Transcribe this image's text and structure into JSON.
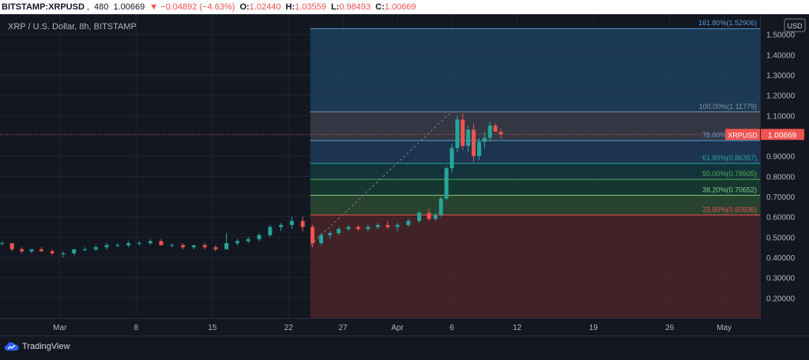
{
  "header": {
    "symbol": "BITSTAMP:XRPUSD",
    "interval": "480",
    "last": "1.00669",
    "arrow": "▼",
    "change": "−0.04892 (−4.63%)",
    "o_label": "O:",
    "o_value": "1.02440",
    "h_label": "H:",
    "h_value": "1.03559",
    "l_label": "L:",
    "l_value": "0.98493",
    "c_label": "C:",
    "c_value": "1.00669"
  },
  "footer": {
    "brand": "TradingView",
    "logo_icon": "tradingview-cloud-icon"
  },
  "colors": {
    "up": "#26a69a",
    "down": "#ef5350",
    "bg": "#131722",
    "grid": "#1f2430"
  },
  "chart_data": {
    "type": "candlestick",
    "title": "XRP / U.S. Dollar, 8h, BITSTAMP",
    "currency_label": "USD",
    "last_price_tag": {
      "symbol": "XRPUSD",
      "value": "1.00669"
    },
    "y_ticks": [
      "1.50000",
      "1.40000",
      "1.30000",
      "1.20000",
      "1.10000",
      "1.00000",
      "0.90000",
      "0.80000",
      "0.70000",
      "0.60000",
      "0.50000",
      "0.40000",
      "0.30000",
      "0.20000"
    ],
    "y_tick_values": [
      1.5,
      1.4,
      1.3,
      1.2,
      1.1,
      1.0,
      0.9,
      0.8,
      0.7,
      0.6,
      0.5,
      0.4,
      0.3,
      0.2
    ],
    "ylim": [
      0.1,
      1.6
    ],
    "x_ticks": [
      {
        "label": "Mar",
        "day": 1
      },
      {
        "label": "8",
        "day": 8
      },
      {
        "label": "15",
        "day": 15
      },
      {
        "label": "22",
        "day": 22
      },
      {
        "label": "27",
        "day": 27
      },
      {
        "label": "Apr",
        "day": 32
      },
      {
        "label": "6",
        "day": 37
      },
      {
        "label": "12",
        "day": 43
      },
      {
        "label": "19",
        "day": 50
      },
      {
        "label": "26",
        "day": 57
      },
      {
        "label": "May",
        "day": 62
      }
    ],
    "xlim": [
      -4.5,
      65.3
    ],
    "fib_start_day": 24,
    "fib_levels": [
      {
        "label": "161.80%(1.52906)",
        "value": 1.52906,
        "color": "#5b9bd5",
        "fill": "#1c3f5e"
      },
      {
        "label": "100.00%(1.11779)",
        "value": 1.11779,
        "color": "#8a8f9c",
        "fill": "#3a3d49"
      },
      {
        "label": "78.60%(0.97678)",
        "value": 0.97678,
        "color": "#5b9bd5",
        "fill": "#1e3a57"
      },
      {
        "label": "61.80%(0.86357)",
        "value": 0.86357,
        "color": "#26a69a",
        "fill": "#14383f"
      },
      {
        "label": "50.00%(0.78505)",
        "value": 0.78505,
        "color": "#4caf50",
        "fill": "#173d33"
      },
      {
        "label": "38.20%(0.70652)",
        "value": 0.70652,
        "color": "#81c784",
        "fill": "#2b4a30"
      },
      {
        "label": "23.60%(0.60936)",
        "value": 0.60936,
        "color": "#ef5350",
        "fill": "#3d2a31"
      }
    ],
    "fib_bottom_fill": "#4a2428",
    "trend_line": {
      "from": {
        "day": 24,
        "price": 0.46
      },
      "to": {
        "day": 36.8,
        "price": 1.11
      }
    },
    "candles": [
      [
        -4.3,
        0.47,
        0.48,
        0.46,
        0.47
      ],
      [
        -3.4,
        0.47,
        0.46,
        0.43,
        0.44
      ],
      [
        -2.5,
        0.44,
        0.45,
        0.42,
        0.43
      ],
      [
        -1.6,
        0.43,
        0.44,
        0.42,
        0.44
      ],
      [
        -0.7,
        0.44,
        0.45,
        0.43,
        0.43
      ],
      [
        0.3,
        0.43,
        0.44,
        0.41,
        0.42
      ],
      [
        1.3,
        0.42,
        0.43,
        0.4,
        0.42
      ],
      [
        2.3,
        0.42,
        0.44,
        0.41,
        0.44
      ],
      [
        3.3,
        0.44,
        0.45,
        0.43,
        0.44
      ],
      [
        4.3,
        0.44,
        0.46,
        0.43,
        0.45
      ],
      [
        5.3,
        0.45,
        0.47,
        0.44,
        0.46
      ],
      [
        6.3,
        0.46,
        0.47,
        0.45,
        0.46
      ],
      [
        7.3,
        0.46,
        0.48,
        0.45,
        0.47
      ],
      [
        8.3,
        0.47,
        0.48,
        0.46,
        0.47
      ],
      [
        9.3,
        0.47,
        0.49,
        0.46,
        0.48
      ],
      [
        10.3,
        0.48,
        0.49,
        0.46,
        0.46
      ],
      [
        11.3,
        0.46,
        0.47,
        0.45,
        0.46
      ],
      [
        12.3,
        0.46,
        0.47,
        0.44,
        0.45
      ],
      [
        13.3,
        0.45,
        0.46,
        0.44,
        0.46
      ],
      [
        14.3,
        0.46,
        0.47,
        0.44,
        0.45
      ],
      [
        15.3,
        0.45,
        0.46,
        0.43,
        0.44
      ],
      [
        16.3,
        0.44,
        0.52,
        0.44,
        0.47
      ],
      [
        17.3,
        0.47,
        0.49,
        0.46,
        0.48
      ],
      [
        18.3,
        0.48,
        0.5,
        0.47,
        0.49
      ],
      [
        19.3,
        0.49,
        0.52,
        0.48,
        0.51
      ],
      [
        20.3,
        0.51,
        0.56,
        0.5,
        0.55
      ],
      [
        21.3,
        0.55,
        0.57,
        0.53,
        0.56
      ],
      [
        22.3,
        0.56,
        0.6,
        0.54,
        0.58
      ],
      [
        23.3,
        0.58,
        0.6,
        0.53,
        0.55
      ],
      [
        24.2,
        0.55,
        0.56,
        0.45,
        0.47
      ],
      [
        25.0,
        0.47,
        0.52,
        0.46,
        0.51
      ],
      [
        25.8,
        0.51,
        0.53,
        0.49,
        0.52
      ],
      [
        26.6,
        0.52,
        0.55,
        0.51,
        0.54
      ],
      [
        27.5,
        0.54,
        0.56,
        0.53,
        0.55
      ],
      [
        28.4,
        0.55,
        0.56,
        0.53,
        0.54
      ],
      [
        29.3,
        0.54,
        0.56,
        0.53,
        0.55
      ],
      [
        30.2,
        0.55,
        0.57,
        0.54,
        0.56
      ],
      [
        31.1,
        0.56,
        0.58,
        0.54,
        0.55
      ],
      [
        32.0,
        0.55,
        0.57,
        0.53,
        0.56
      ],
      [
        33.0,
        0.56,
        0.59,
        0.55,
        0.58
      ],
      [
        34.0,
        0.58,
        0.63,
        0.57,
        0.62
      ],
      [
        34.9,
        0.62,
        0.64,
        0.58,
        0.59
      ],
      [
        35.5,
        0.59,
        0.62,
        0.58,
        0.61
      ],
      [
        36.0,
        0.61,
        0.7,
        0.6,
        0.69
      ],
      [
        36.5,
        0.69,
        0.85,
        0.68,
        0.84
      ],
      [
        37.0,
        0.84,
        0.96,
        0.82,
        0.94
      ],
      [
        37.5,
        0.94,
        1.1,
        0.92,
        1.08
      ],
      [
        38.0,
        1.08,
        1.11,
        0.93,
        0.95
      ],
      [
        38.5,
        0.95,
        1.05,
        0.92,
        1.03
      ],
      [
        39.0,
        1.03,
        1.06,
        0.87,
        0.9
      ],
      [
        39.5,
        0.9,
        0.99,
        0.88,
        0.97
      ],
      [
        40.0,
        0.97,
        1.02,
        0.94,
        0.99
      ],
      [
        40.5,
        0.99,
        1.07,
        0.97,
        1.05
      ],
      [
        41.0,
        1.05,
        1.06,
        1.02,
        1.02
      ],
      [
        41.5,
        1.02,
        1.035,
        0.985,
        1.007
      ]
    ]
  }
}
